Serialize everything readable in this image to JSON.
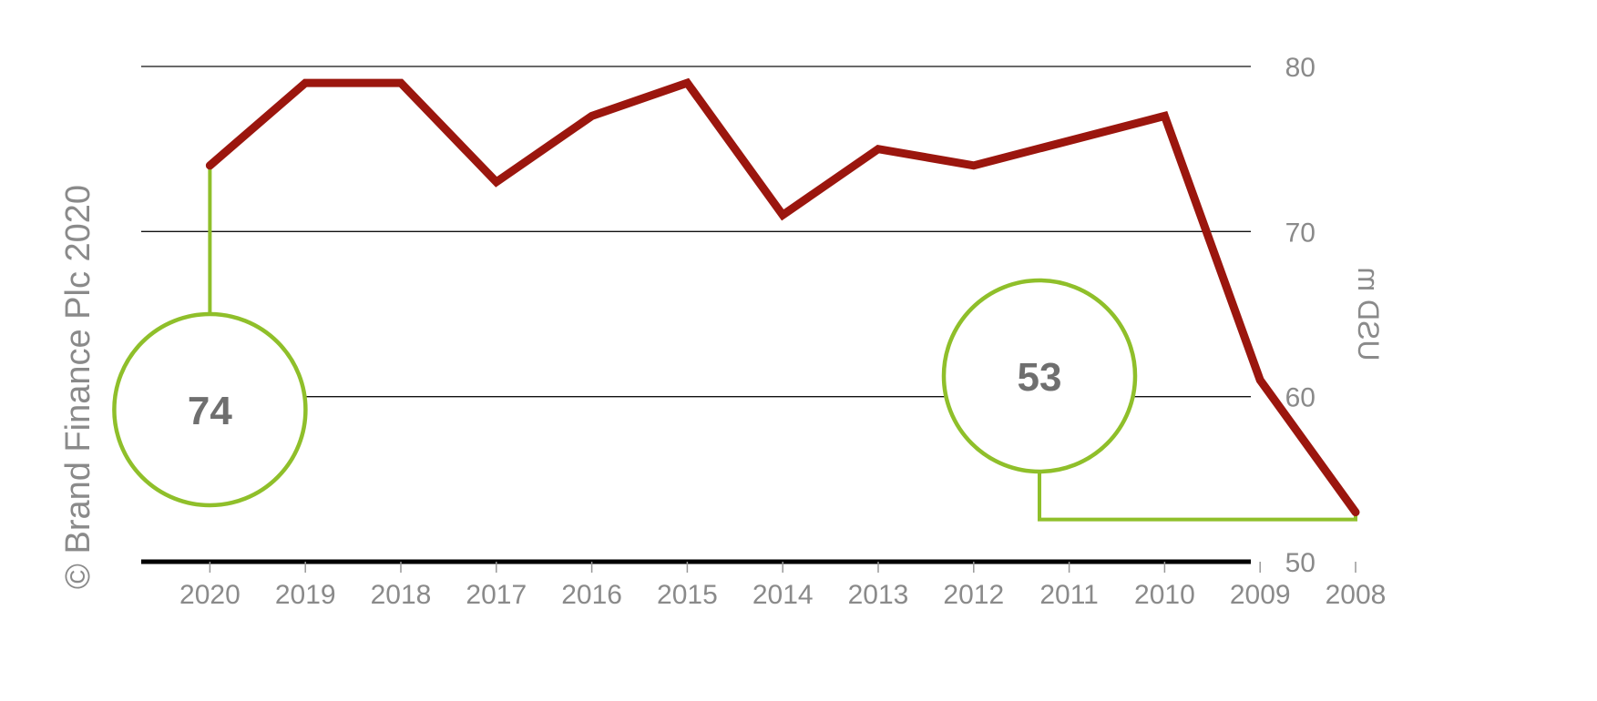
{
  "chart_data": {
    "type": "line",
    "categories": [
      "2008",
      "2009",
      "2010",
      "2011",
      "2012",
      "2013",
      "2014",
      "2015",
      "2016",
      "2017",
      "2018",
      "2019",
      "2020"
    ],
    "series": [
      {
        "values": [
          53,
          61,
          77,
          75.5,
          74,
          75,
          71,
          79,
          77,
          73,
          79,
          79,
          74
        ]
      }
    ],
    "ylabel": "USD m",
    "y_ticks": [
      "50",
      "60",
      "70",
      "80"
    ],
    "ylim": [
      50,
      80
    ],
    "grid": true,
    "line_color": "#9b160e",
    "callout_color": "#8fbf2a",
    "callouts": [
      {
        "label": "53",
        "category": "2008"
      },
      {
        "label": "74",
        "category": "2020"
      }
    ],
    "credit": "© Brand Finance Plc 2020",
    "mirrored": true
  }
}
